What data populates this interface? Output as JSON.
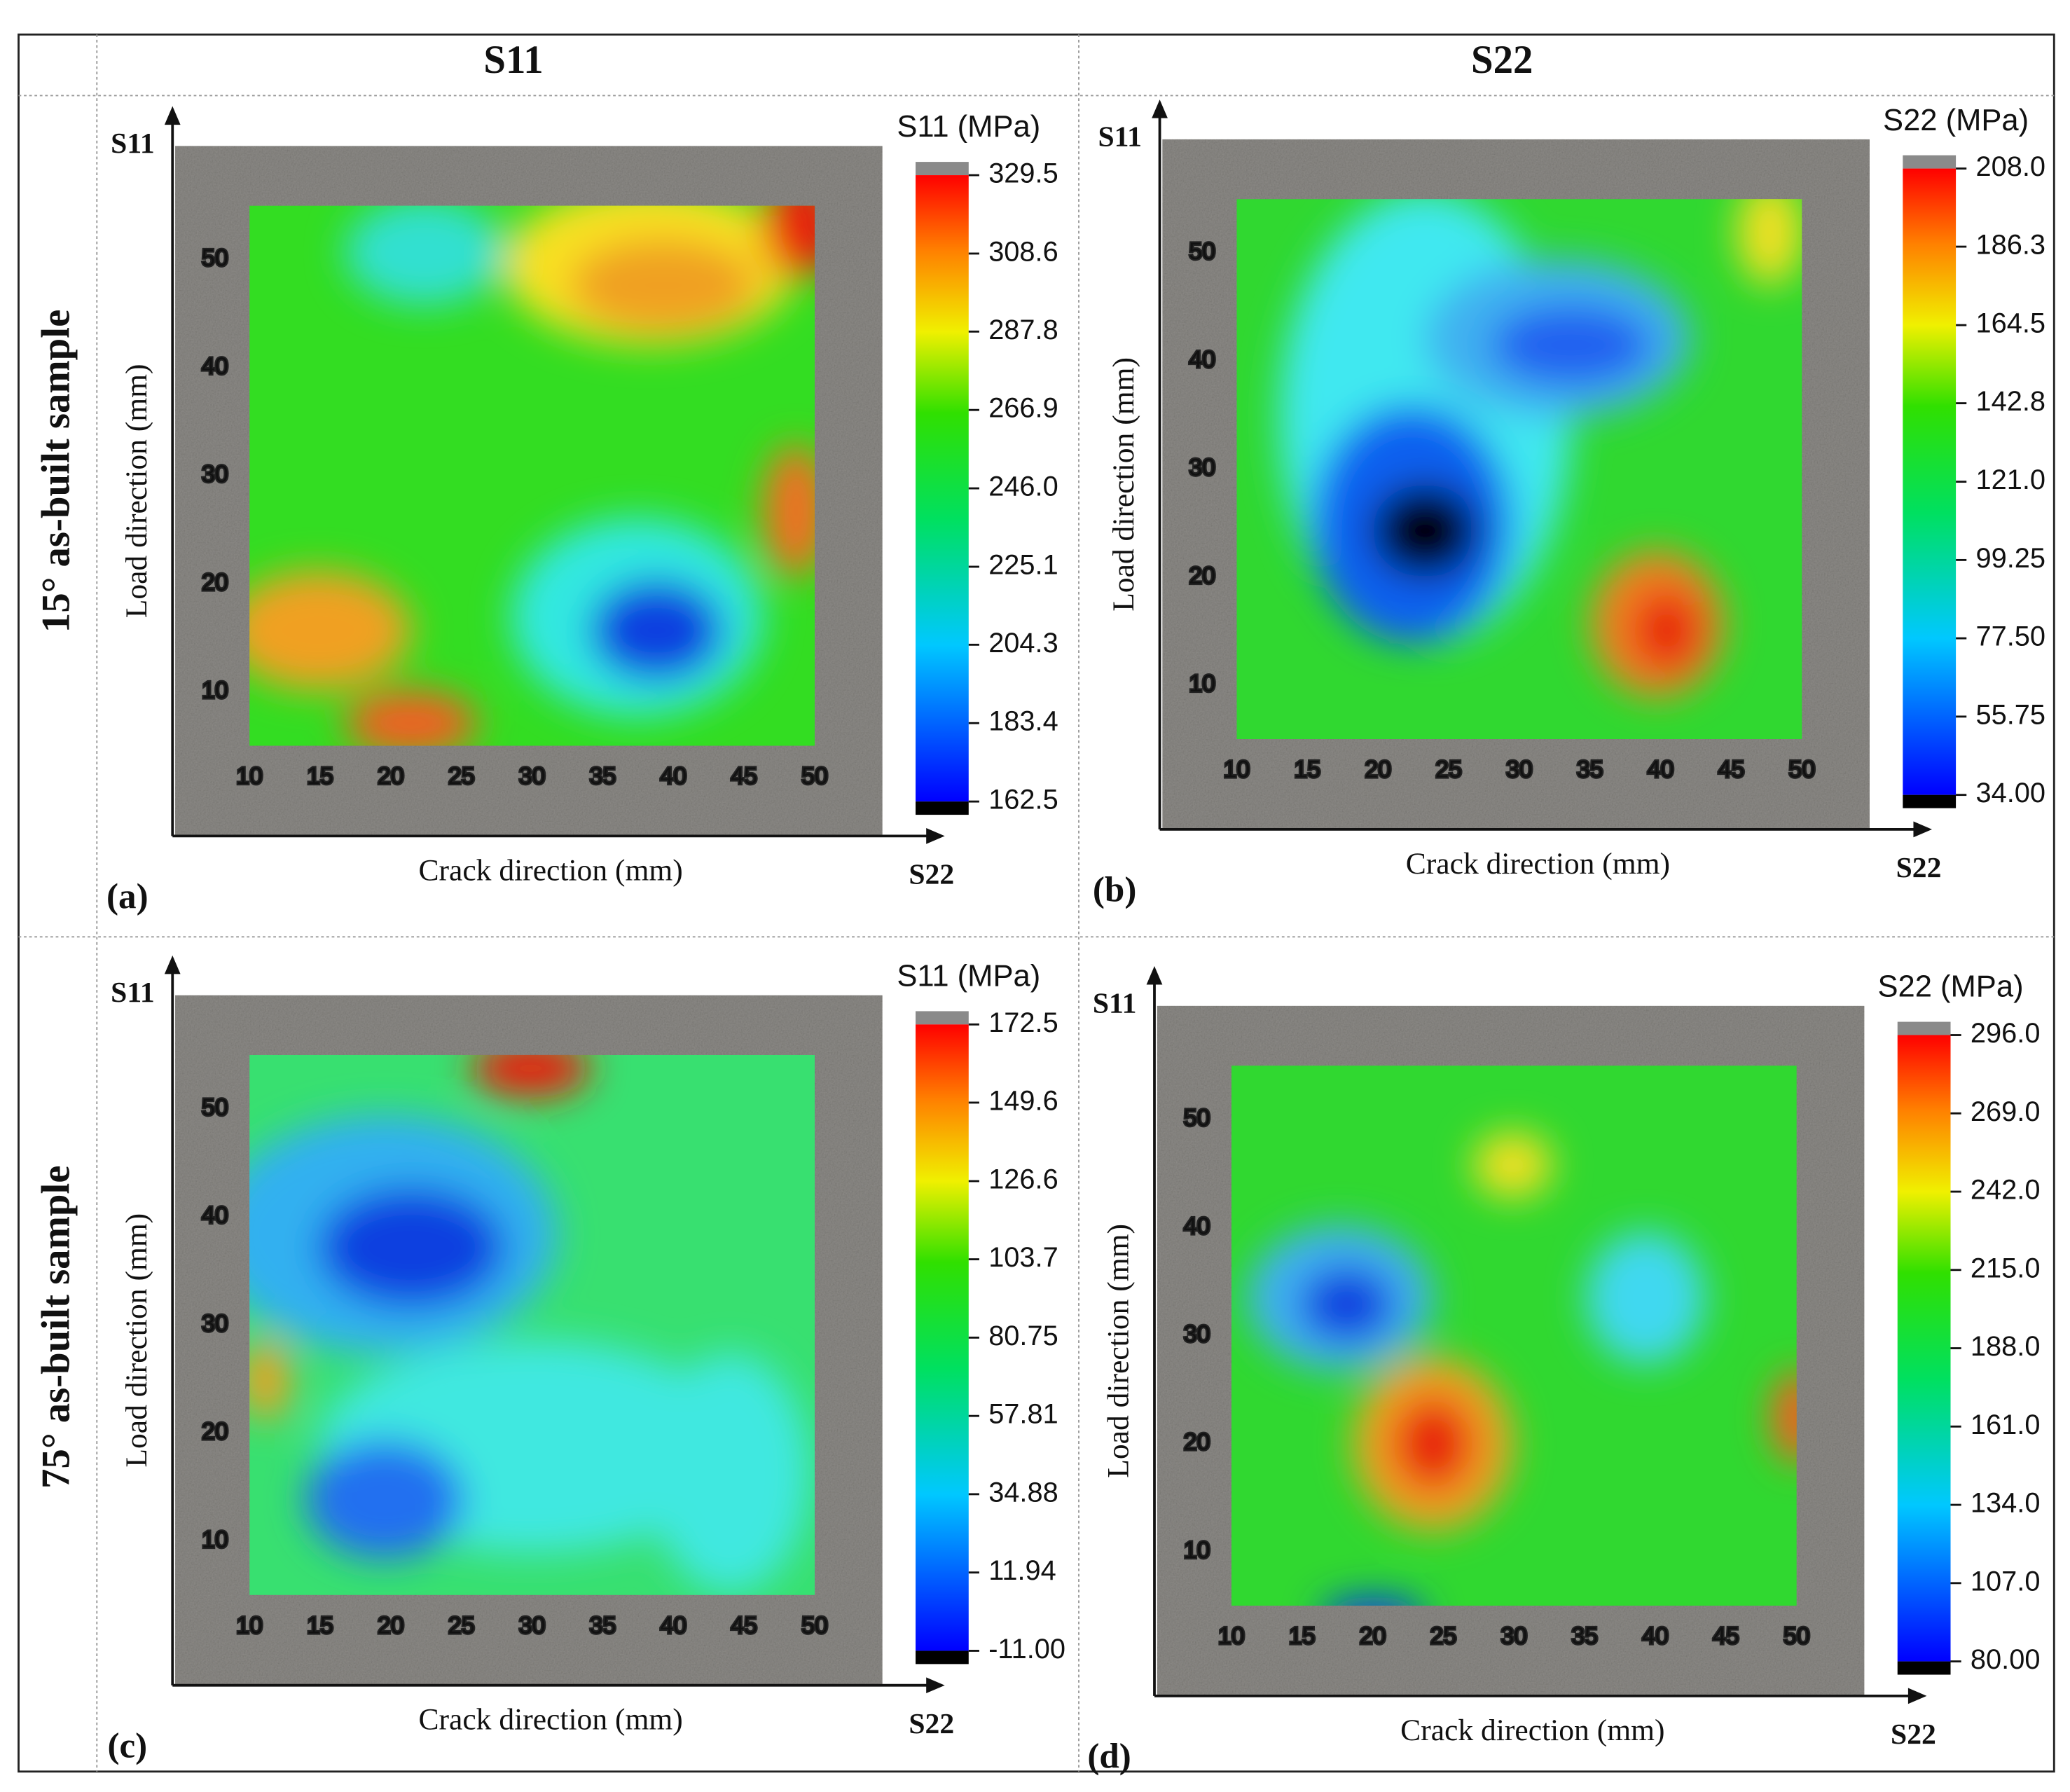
{
  "columns": [
    "S11",
    "S22"
  ],
  "rows": [
    "15° as-built sample",
    "75° as-built sample"
  ],
  "panels": [
    {
      "label": "(a)",
      "x_label": "Crack direction (mm)",
      "y_label": "Load direction (mm)",
      "x_axis_end": "S22",
      "y_axis_end": "S11",
      "xlim": [
        10,
        50
      ],
      "ylim": [
        5,
        55
      ],
      "xticks": [
        10,
        15,
        20,
        25,
        30,
        35,
        40,
        45,
        50
      ],
      "yticks": [
        10,
        20,
        30,
        40,
        50
      ],
      "colorbar": {
        "title": "S11 (MPa)",
        "clim": [
          162.5,
          329.5
        ],
        "ticks": [
          162.5,
          183.4,
          204.3,
          225.1,
          {
            "value": 246,
            "label": "246.0"
          },
          266.9,
          287.8,
          308.6,
          329.5
        ]
      }
    },
    {
      "label": "(b)",
      "x_label": "Crack direction (mm)",
      "y_label": "Load direction (mm)",
      "x_axis_end": "S22",
      "y_axis_end": "S11",
      "xlim": [
        10,
        50
      ],
      "ylim": [
        5,
        55
      ],
      "xticks": [
        10,
        15,
        20,
        25,
        30,
        35,
        40,
        45,
        50
      ],
      "yticks": [
        10,
        20,
        30,
        40,
        50
      ],
      "colorbar": {
        "title": "S22 (MPa)",
        "clim": [
          34,
          208
        ],
        "ticks": [
          {
            "value": 34,
            "label": "34.00"
          },
          55.75,
          {
            "value": 77.5,
            "label": "77.50"
          },
          99.25,
          {
            "value": 121,
            "label": "121.0"
          },
          142.8,
          164.5,
          186.3,
          {
            "value": 208,
            "label": "208.0"
          }
        ]
      }
    },
    {
      "label": "(c)",
      "x_label": "Crack direction (mm)",
      "y_label": "Load direction (mm)",
      "x_axis_end": "S22",
      "y_axis_end": "S11",
      "xlim": [
        10,
        50
      ],
      "ylim": [
        5,
        55
      ],
      "xticks": [
        10,
        15,
        20,
        25,
        30,
        35,
        40,
        45,
        50
      ],
      "yticks": [
        10,
        20,
        30,
        40,
        50
      ],
      "colorbar": {
        "title": "S11 (MPa)",
        "clim": [
          -11,
          172.5
        ],
        "ticks": [
          {
            "value": -11,
            "label": "-11.00"
          },
          11.94,
          34.88,
          57.81,
          80.75,
          103.7,
          126.6,
          149.6,
          172.5
        ]
      }
    },
    {
      "label": "(d)",
      "x_label": "Crack direction (mm)",
      "y_label": "Load direction (mm)",
      "x_axis_end": "S22",
      "y_axis_end": "S11",
      "xlim": [
        10,
        50
      ],
      "ylim": [
        5,
        55
      ],
      "xticks": [
        10,
        15,
        20,
        25,
        30,
        35,
        40,
        45,
        50
      ],
      "yticks": [
        10,
        20,
        30,
        40,
        50
      ],
      "colorbar": {
        "title": "S22 (MPa)",
        "clim": [
          80,
          296
        ],
        "ticks": [
          {
            "value": 80,
            "label": "80.00"
          },
          {
            "value": 107,
            "label": "107.0"
          },
          {
            "value": 134,
            "label": "134.0"
          },
          {
            "value": 161,
            "label": "161.0"
          },
          {
            "value": 188,
            "label": "188.0"
          },
          {
            "value": 215,
            "label": "215.0"
          },
          {
            "value": 242,
            "label": "242.0"
          },
          {
            "value": 269,
            "label": "269.0"
          },
          {
            "value": 296,
            "label": "296.0"
          }
        ]
      }
    }
  ]
}
